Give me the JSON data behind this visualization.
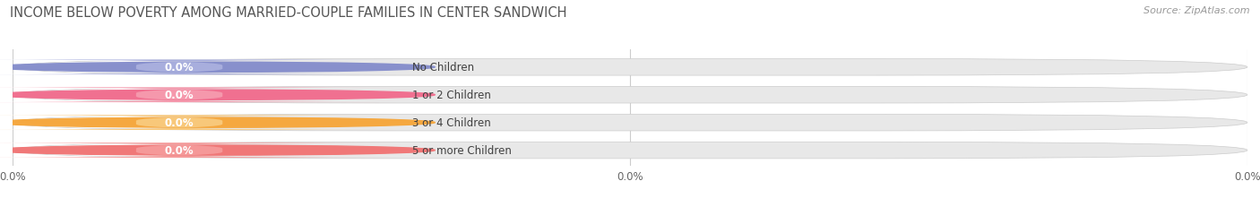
{
  "title": "INCOME BELOW POVERTY AMONG MARRIED-COUPLE FAMILIES IN CENTER SANDWICH",
  "source": "Source: ZipAtlas.com",
  "categories": [
    "No Children",
    "1 or 2 Children",
    "3 or 4 Children",
    "5 or more Children"
  ],
  "values": [
    0.0,
    0.0,
    0.0,
    0.0
  ],
  "bar_colors": [
    "#a8aedd",
    "#f598ac",
    "#f8c87a",
    "#f59898"
  ],
  "dot_colors": [
    "#8890cc",
    "#f07090",
    "#f5a840",
    "#f07878"
  ],
  "bg_color": "#ffffff",
  "bar_bg_color": "#e8e8e8",
  "bar_inner_color": "#f0f0f0",
  "title_fontsize": 10.5,
  "source_fontsize": 8,
  "tick_label_fontsize": 8.5,
  "bar_label_fontsize": 8.5,
  "category_fontsize": 8.5,
  "xtick_labels": [
    "0.0%",
    "0.0%",
    "0.0%"
  ]
}
